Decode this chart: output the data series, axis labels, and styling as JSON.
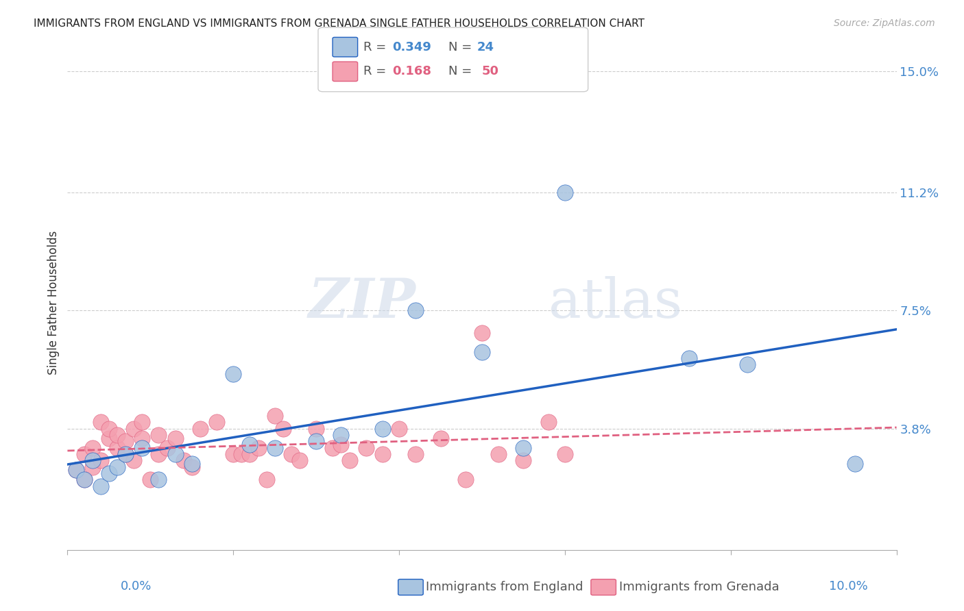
{
  "title": "IMMIGRANTS FROM ENGLAND VS IMMIGRANTS FROM GRENADA SINGLE FATHER HOUSEHOLDS CORRELATION CHART",
  "source": "Source: ZipAtlas.com",
  "ylabel": "Single Father Households",
  "yticks": [
    0.0,
    0.038,
    0.075,
    0.112,
    0.15
  ],
  "ytick_labels": [
    "",
    "3.8%",
    "7.5%",
    "11.2%",
    "15.0%"
  ],
  "xlim": [
    0.0,
    0.1
  ],
  "ylim": [
    0.0,
    0.155
  ],
  "england_R": "0.349",
  "england_N": "24",
  "grenada_R": "0.168",
  "grenada_N": "50",
  "england_color": "#a8c4e0",
  "grenada_color": "#f4a0b0",
  "england_line_color": "#2060c0",
  "grenada_line_color": "#e06080",
  "watermark_zip": "ZIP",
  "watermark_atlas": "atlas",
  "england_x": [
    0.001,
    0.002,
    0.003,
    0.004,
    0.005,
    0.006,
    0.007,
    0.009,
    0.011,
    0.013,
    0.015,
    0.02,
    0.022,
    0.025,
    0.03,
    0.033,
    0.038,
    0.042,
    0.05,
    0.055,
    0.06,
    0.075,
    0.082,
    0.095
  ],
  "england_y": [
    0.025,
    0.022,
    0.028,
    0.02,
    0.024,
    0.026,
    0.03,
    0.032,
    0.022,
    0.03,
    0.027,
    0.055,
    0.033,
    0.032,
    0.034,
    0.036,
    0.038,
    0.075,
    0.062,
    0.032,
    0.112,
    0.06,
    0.058,
    0.027
  ],
  "grenada_x": [
    0.001,
    0.002,
    0.002,
    0.003,
    0.003,
    0.004,
    0.004,
    0.005,
    0.005,
    0.006,
    0.006,
    0.007,
    0.007,
    0.008,
    0.008,
    0.009,
    0.009,
    0.01,
    0.011,
    0.011,
    0.012,
    0.013,
    0.014,
    0.015,
    0.016,
    0.018,
    0.02,
    0.021,
    0.022,
    0.023,
    0.024,
    0.025,
    0.026,
    0.027,
    0.028,
    0.03,
    0.032,
    0.033,
    0.034,
    0.036,
    0.038,
    0.04,
    0.042,
    0.045,
    0.048,
    0.05,
    0.052,
    0.055,
    0.058,
    0.06
  ],
  "grenada_y": [
    0.025,
    0.022,
    0.03,
    0.026,
    0.032,
    0.04,
    0.028,
    0.035,
    0.038,
    0.032,
    0.036,
    0.03,
    0.034,
    0.038,
    0.028,
    0.035,
    0.04,
    0.022,
    0.03,
    0.036,
    0.032,
    0.035,
    0.028,
    0.026,
    0.038,
    0.04,
    0.03,
    0.03,
    0.03,
    0.032,
    0.022,
    0.042,
    0.038,
    0.03,
    0.028,
    0.038,
    0.032,
    0.033,
    0.028,
    0.032,
    0.03,
    0.038,
    0.03,
    0.035,
    0.022,
    0.068,
    0.03,
    0.028,
    0.04,
    0.03
  ]
}
